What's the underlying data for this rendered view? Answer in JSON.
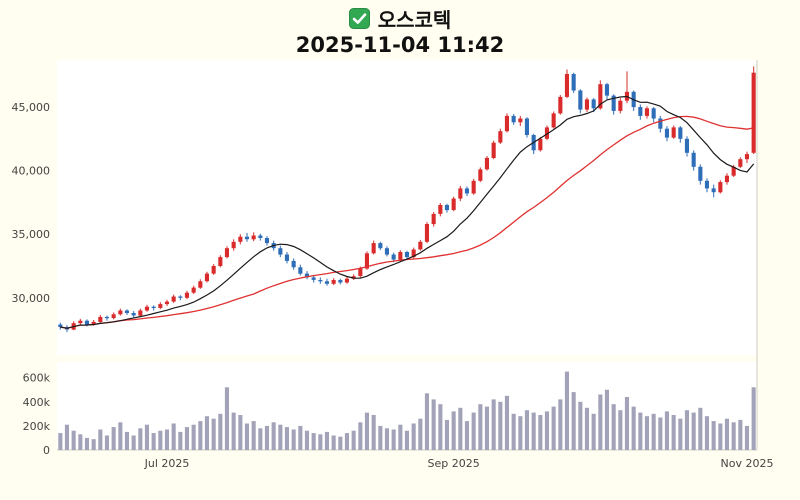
{
  "header": {
    "title": "오스코텍",
    "timestamp": "2025-11-04 11:42",
    "checkbox_color": "#33a852"
  },
  "chart_data": {
    "type": "candlestick",
    "title": "오스코텍",
    "subtitle": "2025-11-04 11:42",
    "legend_position": "none",
    "grid": false,
    "up_color": "#d92b2b",
    "down_color": "#2e6db8",
    "ma_short_color": "#1a1a1a",
    "ma_long_color": "#e03131",
    "volume_color": "#a2a2b8",
    "ma_short_period": 10,
    "ma_long_period": 30,
    "price_axis": {
      "ticks": [
        30000,
        35000,
        40000,
        45000
      ],
      "tick_labels": [
        "30,000",
        "35,000",
        "40,000",
        "45,000"
      ],
      "range": [
        25500,
        48700
      ]
    },
    "volume_axis": {
      "ticks": [
        0,
        200,
        400,
        600
      ],
      "tick_labels": [
        "0",
        "200k",
        "400k",
        "600k"
      ],
      "range": [
        0,
        730
      ],
      "unit": "thousands of shares"
    },
    "x_axis": {
      "tick_labels": [
        "Jul 2025",
        "Sep 2025",
        "Nov 2025"
      ],
      "tick_indices": [
        16,
        59,
        103
      ]
    },
    "candles": [
      [
        27900,
        28050,
        27500,
        27700
      ],
      [
        27700,
        27850,
        27300,
        27500
      ],
      [
        27500,
        28150,
        27450,
        28000
      ],
      [
        28000,
        28350,
        27900,
        28200
      ],
      [
        28200,
        28300,
        27750,
        27900
      ],
      [
        27900,
        28250,
        27800,
        28100
      ],
      [
        28100,
        28650,
        28050,
        28500
      ],
      [
        28500,
        28600,
        28200,
        28400
      ],
      [
        28400,
        28850,
        28300,
        28700
      ],
      [
        28700,
        29150,
        28600,
        29000
      ],
      [
        29000,
        29100,
        28650,
        28800
      ],
      [
        28800,
        28950,
        28450,
        28600
      ],
      [
        28600,
        29150,
        28550,
        29000
      ],
      [
        29000,
        29450,
        28900,
        29300
      ],
      [
        29300,
        29400,
        29000,
        29200
      ],
      [
        29200,
        29650,
        29100,
        29500
      ],
      [
        29500,
        29850,
        29350,
        29700
      ],
      [
        29700,
        30250,
        29600,
        30100
      ],
      [
        30100,
        30200,
        29800,
        30000
      ],
      [
        30000,
        30550,
        29900,
        30400
      ],
      [
        30400,
        30950,
        30300,
        30800
      ],
      [
        30800,
        31450,
        30700,
        31300
      ],
      [
        31300,
        32050,
        31200,
        31900
      ],
      [
        31900,
        32650,
        31800,
        32500
      ],
      [
        32500,
        33350,
        32400,
        33200
      ],
      [
        33200,
        34050,
        33100,
        33900
      ],
      [
        33900,
        34600,
        33700,
        34400
      ],
      [
        34400,
        35000,
        34200,
        34800
      ],
      [
        34800,
        35100,
        34400,
        34600
      ],
      [
        34600,
        35150,
        34450,
        34900
      ],
      [
        34900,
        35050,
        34500,
        34700
      ],
      [
        34700,
        34850,
        34100,
        34300
      ],
      [
        34300,
        34500,
        33700,
        33900
      ],
      [
        33900,
        34100,
        33200,
        33400
      ],
      [
        33400,
        33600,
        32700,
        32900
      ],
      [
        32900,
        33100,
        32200,
        32400
      ],
      [
        32400,
        32600,
        31750,
        31900
      ],
      [
        31900,
        32100,
        31450,
        31600
      ],
      [
        31600,
        31800,
        31200,
        31400
      ],
      [
        31400,
        31600,
        31100,
        31300
      ],
      [
        31300,
        31500,
        30950,
        31100
      ],
      [
        31100,
        31550,
        31000,
        31400
      ],
      [
        31400,
        31500,
        31050,
        31200
      ],
      [
        31200,
        31650,
        31100,
        31500
      ],
      [
        31500,
        31850,
        31400,
        31700
      ],
      [
        31700,
        32450,
        31600,
        32300
      ],
      [
        32300,
        33650,
        32200,
        33500
      ],
      [
        33500,
        34500,
        33400,
        34300
      ],
      [
        34300,
        34400,
        33750,
        33900
      ],
      [
        33900,
        34050,
        33250,
        33400
      ],
      [
        33400,
        33550,
        32800,
        33000
      ],
      [
        33000,
        33750,
        32900,
        33600
      ],
      [
        33600,
        33700,
        33050,
        33200
      ],
      [
        33200,
        33950,
        33100,
        33800
      ],
      [
        33800,
        34550,
        33700,
        34400
      ],
      [
        34400,
        35950,
        34300,
        35800
      ],
      [
        35800,
        36750,
        35600,
        36600
      ],
      [
        36600,
        37450,
        36400,
        37300
      ],
      [
        37300,
        37400,
        36700,
        36900
      ],
      [
        36900,
        37950,
        36800,
        37800
      ],
      [
        37800,
        38800,
        37600,
        38600
      ],
      [
        38600,
        38750,
        38000,
        38200
      ],
      [
        38200,
        39350,
        38100,
        39200
      ],
      [
        39200,
        40250,
        39100,
        40100
      ],
      [
        40100,
        41150,
        40000,
        41000
      ],
      [
        41000,
        42350,
        40900,
        42200
      ],
      [
        42200,
        43300,
        42100,
        43100
      ],
      [
        43100,
        44500,
        43000,
        44300
      ],
      [
        44300,
        44450,
        43600,
        43800
      ],
      [
        43800,
        44300,
        43500,
        44100
      ],
      [
        44100,
        44200,
        42600,
        42800
      ],
      [
        42800,
        42900,
        41300,
        41600
      ],
      [
        41600,
        42650,
        41500,
        42500
      ],
      [
        42500,
        43550,
        42400,
        43400
      ],
      [
        43400,
        44650,
        43300,
        44500
      ],
      [
        44500,
        45950,
        44400,
        45800
      ],
      [
        45800,
        47950,
        45700,
        47600
      ],
      [
        47600,
        47700,
        46100,
        46300
      ],
      [
        46300,
        46400,
        44500,
        44800
      ],
      [
        44800,
        45750,
        44600,
        45600
      ],
      [
        45600,
        45700,
        44600,
        44900
      ],
      [
        44900,
        47100,
        44800,
        46800
      ],
      [
        46800,
        46900,
        45600,
        45900
      ],
      [
        45900,
        46000,
        44400,
        44700
      ],
      [
        44700,
        45700,
        44500,
        45500
      ],
      [
        45500,
        47800,
        45300,
        46200
      ],
      [
        46200,
        46300,
        44700,
        45000
      ],
      [
        45000,
        45200,
        44000,
        44300
      ],
      [
        44300,
        45050,
        44100,
        44900
      ],
      [
        44900,
        45000,
        43800,
        44100
      ],
      [
        44100,
        44300,
        43000,
        43300
      ],
      [
        43300,
        43500,
        42300,
        42600
      ],
      [
        42600,
        43550,
        42500,
        43400
      ],
      [
        43400,
        43500,
        42200,
        42500
      ],
      [
        42500,
        42700,
        41100,
        41400
      ],
      [
        41400,
        41600,
        40000,
        40300
      ],
      [
        40300,
        40500,
        38900,
        39200
      ],
      [
        39200,
        39400,
        38300,
        38600
      ],
      [
        38600,
        38900,
        37900,
        38300
      ],
      [
        38300,
        39250,
        38200,
        39100
      ],
      [
        39100,
        39800,
        38900,
        39600
      ],
      [
        39600,
        40450,
        39500,
        40300
      ],
      [
        40300,
        41050,
        40200,
        40900
      ],
      [
        40900,
        41500,
        40600,
        41300
      ],
      [
        41400,
        48200,
        41300,
        47700
      ]
    ],
    "volumes_k": [
      140,
      210,
      160,
      130,
      100,
      90,
      170,
      120,
      190,
      230,
      150,
      120,
      180,
      210,
      140,
      160,
      170,
      220,
      150,
      190,
      210,
      240,
      280,
      260,
      300,
      520,
      310,
      290,
      220,
      240,
      180,
      200,
      230,
      210,
      190,
      170,
      200,
      160,
      140,
      130,
      150,
      120,
      110,
      140,
      160,
      230,
      310,
      290,
      200,
      180,
      170,
      210,
      160,
      220,
      260,
      470,
      420,
      380,
      250,
      320,
      350,
      240,
      310,
      380,
      360,
      420,
      400,
      450,
      300,
      280,
      330,
      310,
      290,
      320,
      360,
      420,
      650,
      480,
      400,
      350,
      300,
      460,
      500,
      380,
      330,
      440,
      360,
      310,
      280,
      300,
      270,
      320,
      290,
      260,
      330,
      310,
      350,
      280,
      240,
      220,
      260,
      230,
      250,
      200,
      520
    ]
  }
}
